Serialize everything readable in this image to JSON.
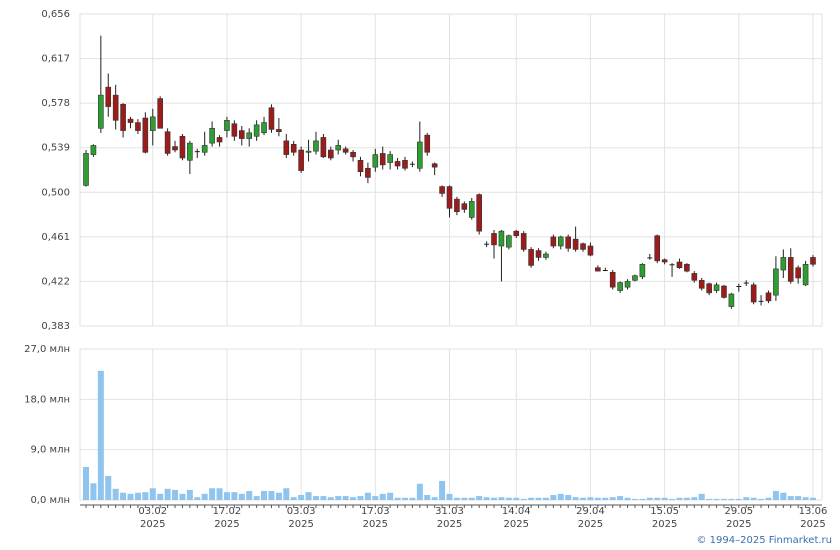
{
  "chart_data": [
    {
      "type": "candlestick",
      "open": [
        0.506,
        0.533,
        0.556,
        0.592,
        0.585,
        0.577,
        0.564,
        0.561,
        0.565,
        0.554,
        0.582,
        0.553,
        0.54,
        0.549,
        0.528,
        0.536,
        0.535,
        0.543,
        0.548,
        0.554,
        0.56,
        0.554,
        0.547,
        0.549,
        0.552,
        0.574,
        0.555,
        0.545,
        0.542,
        0.537,
        0.535,
        0.536,
        0.548,
        0.537,
        0.537,
        0.538,
        0.535,
        0.528,
        0.521,
        0.522,
        0.534,
        0.526,
        0.527,
        0.528,
        0.525,
        0.521,
        0.55,
        0.525,
        0.505,
        0.505,
        0.494,
        0.49,
        0.478,
        0.498,
        0.455,
        0.464,
        0.453,
        0.452,
        0.466,
        0.464,
        0.45,
        0.449,
        0.443,
        0.461,
        0.453,
        0.461,
        0.459,
        0.455,
        0.453,
        0.434,
        0.432,
        0.43,
        0.414,
        0.417,
        0.423,
        0.426,
        0.443,
        0.462,
        0.441,
        0.437,
        0.439,
        0.437,
        0.429,
        0.423,
        0.42,
        0.414,
        0.418,
        0.4,
        0.418,
        0.421,
        0.419,
        0.405,
        0.412,
        0.41,
        0.432,
        0.443,
        0.434,
        0.419,
        0.443
      ],
      "high": [
        0.537,
        0.542,
        0.637,
        0.604,
        0.594,
        0.578,
        0.566,
        0.564,
        0.57,
        0.573,
        0.584,
        0.556,
        0.545,
        0.551,
        0.545,
        0.538,
        0.553,
        0.562,
        0.55,
        0.566,
        0.563,
        0.558,
        0.556,
        0.563,
        0.566,
        0.577,
        0.565,
        0.551,
        0.545,
        0.54,
        0.546,
        0.553,
        0.551,
        0.54,
        0.546,
        0.54,
        0.537,
        0.531,
        0.526,
        0.538,
        0.54,
        0.536,
        0.53,
        0.531,
        0.527,
        0.562,
        0.552,
        0.526,
        0.506,
        0.506,
        0.496,
        0.492,
        0.495,
        0.499,
        0.457,
        0.467,
        0.467,
        0.463,
        0.467,
        0.466,
        0.452,
        0.451,
        0.448,
        0.463,
        0.462,
        0.463,
        0.47,
        0.456,
        0.456,
        0.436,
        0.434,
        0.432,
        0.422,
        0.424,
        0.428,
        0.438,
        0.446,
        0.463,
        0.442,
        0.438,
        0.442,
        0.438,
        0.431,
        0.425,
        0.421,
        0.421,
        0.419,
        0.412,
        0.42,
        0.423,
        0.421,
        0.41,
        0.414,
        0.444,
        0.45,
        0.451,
        0.436,
        0.44,
        0.445
      ],
      "low": [
        0.505,
        0.531,
        0.552,
        0.566,
        0.555,
        0.548,
        0.556,
        0.551,
        0.534,
        0.541,
        0.556,
        0.532,
        0.535,
        0.528,
        0.516,
        0.53,
        0.532,
        0.54,
        0.54,
        0.548,
        0.545,
        0.541,
        0.54,
        0.545,
        0.55,
        0.552,
        0.549,
        0.53,
        0.532,
        0.517,
        0.527,
        0.533,
        0.53,
        0.528,
        0.533,
        0.533,
        0.527,
        0.514,
        0.508,
        0.518,
        0.52,
        0.52,
        0.52,
        0.519,
        0.522,
        0.518,
        0.532,
        0.515,
        0.496,
        0.478,
        0.48,
        0.482,
        0.476,
        0.463,
        0.452,
        0.442,
        0.422,
        0.45,
        0.46,
        0.448,
        0.434,
        0.44,
        0.441,
        0.451,
        0.45,
        0.448,
        0.448,
        0.448,
        0.444,
        0.431,
        0.431,
        0.415,
        0.412,
        0.415,
        0.422,
        0.424,
        0.441,
        0.438,
        0.437,
        0.426,
        0.433,
        0.43,
        0.421,
        0.414,
        0.41,
        0.412,
        0.407,
        0.398,
        0.413,
        0.418,
        0.402,
        0.401,
        0.403,
        0.405,
        0.425,
        0.42,
        0.42,
        0.418,
        0.435
      ],
      "close": [
        0.534,
        0.541,
        0.585,
        0.575,
        0.563,
        0.554,
        0.561,
        0.554,
        0.535,
        0.566,
        0.556,
        0.534,
        0.537,
        0.53,
        0.543,
        0.536,
        0.541,
        0.556,
        0.544,
        0.563,
        0.549,
        0.547,
        0.552,
        0.559,
        0.561,
        0.555,
        0.553,
        0.533,
        0.535,
        0.519,
        0.536,
        0.545,
        0.531,
        0.53,
        0.541,
        0.535,
        0.531,
        0.518,
        0.513,
        0.533,
        0.524,
        0.533,
        0.523,
        0.521,
        0.525,
        0.544,
        0.535,
        0.522,
        0.499,
        0.486,
        0.483,
        0.485,
        0.492,
        0.466,
        0.455,
        0.454,
        0.466,
        0.462,
        0.462,
        0.45,
        0.436,
        0.443,
        0.446,
        0.453,
        0.461,
        0.451,
        0.45,
        0.45,
        0.445,
        0.431,
        0.432,
        0.417,
        0.421,
        0.422,
        0.427,
        0.437,
        0.443,
        0.44,
        0.439,
        0.437,
        0.434,
        0.431,
        0.423,
        0.416,
        0.412,
        0.419,
        0.408,
        0.411,
        0.418,
        0.421,
        0.404,
        0.405,
        0.405,
        0.433,
        0.443,
        0.422,
        0.425,
        0.437,
        0.437
      ],
      "up_color": "#2e9e32",
      "down_color": "#9c1b1b",
      "ylim": [
        0.383,
        0.656
      ],
      "yticks": [
        {
          "value": 0.383,
          "label": "0,383"
        },
        {
          "value": 0.422,
          "label": "0,422"
        },
        {
          "value": 0.461,
          "label": "0,461"
        },
        {
          "value": 0.5,
          "label": "0,500"
        },
        {
          "value": 0.539,
          "label": "0,539"
        },
        {
          "value": 0.578,
          "label": "0,578"
        },
        {
          "value": 0.617,
          "label": "0,617"
        },
        {
          "value": 0.656,
          "label": "0,656"
        }
      ],
      "grid": true
    },
    {
      "type": "bar",
      "categories": [
        null,
        null,
        null,
        null,
        null,
        null,
        null,
        null,
        null,
        "03.02\n2025",
        null,
        null,
        null,
        null,
        null,
        null,
        null,
        null,
        null,
        "17.02\n2025",
        null,
        null,
        null,
        null,
        null,
        null,
        null,
        null,
        null,
        "03.03\n2025",
        null,
        null,
        null,
        null,
        null,
        null,
        null,
        null,
        null,
        "17.03\n2025",
        null,
        null,
        null,
        null,
        null,
        null,
        null,
        null,
        null,
        "31.03\n2025",
        null,
        null,
        null,
        null,
        null,
        null,
        null,
        null,
        "14.04\n2025",
        null,
        null,
        null,
        null,
        null,
        null,
        null,
        null,
        null,
        "29.04\n2025",
        null,
        null,
        null,
        null,
        null,
        null,
        null,
        null,
        null,
        "15.05\n2025",
        null,
        null,
        null,
        null,
        null,
        null,
        null,
        null,
        null,
        "29.05\n2025",
        null,
        null,
        null,
        null,
        null,
        null,
        null,
        null,
        null,
        "13.06\n2025"
      ],
      "values": [
        5.9,
        3.0,
        23.1,
        4.3,
        2.0,
        1.3,
        1.1,
        1.3,
        1.4,
        2.1,
        1.1,
        2.0,
        1.8,
        1.1,
        1.8,
        0.5,
        1.1,
        2.1,
        2.1,
        1.4,
        1.4,
        1.1,
        1.6,
        0.7,
        1.6,
        1.6,
        1.3,
        2.1,
        0.5,
        0.9,
        1.4,
        0.7,
        0.7,
        0.5,
        0.7,
        0.7,
        0.5,
        0.7,
        1.3,
        0.7,
        1.1,
        1.3,
        0.4,
        0.4,
        0.4,
        2.9,
        0.9,
        0.5,
        3.4,
        1.1,
        0.4,
        0.4,
        0.4,
        0.7,
        0.5,
        0.4,
        0.5,
        0.4,
        0.4,
        0.2,
        0.4,
        0.4,
        0.4,
        0.9,
        1.1,
        0.9,
        0.5,
        0.4,
        0.5,
        0.4,
        0.4,
        0.5,
        0.7,
        0.4,
        0.2,
        0.2,
        0.4,
        0.4,
        0.4,
        0.2,
        0.4,
        0.4,
        0.5,
        1.1,
        0.2,
        0.2,
        0.2,
        0.2,
        0.2,
        0.5,
        0.4,
        0.2,
        0.4,
        1.6,
        1.3,
        0.7,
        0.7,
        0.5,
        0.4
      ],
      "color": "#8fc4ee",
      "ylim": [
        0,
        27
      ],
      "yticks": [
        {
          "value": 0,
          "label": "0,0 млн"
        },
        {
          "value": 9,
          "label": "9,0 млн"
        },
        {
          "value": 18,
          "label": "18,0 млн"
        },
        {
          "value": 27,
          "label": "27,0 млн"
        }
      ],
      "grid": true
    }
  ],
  "credit": "© 1994–2025 Finmarket.ru"
}
